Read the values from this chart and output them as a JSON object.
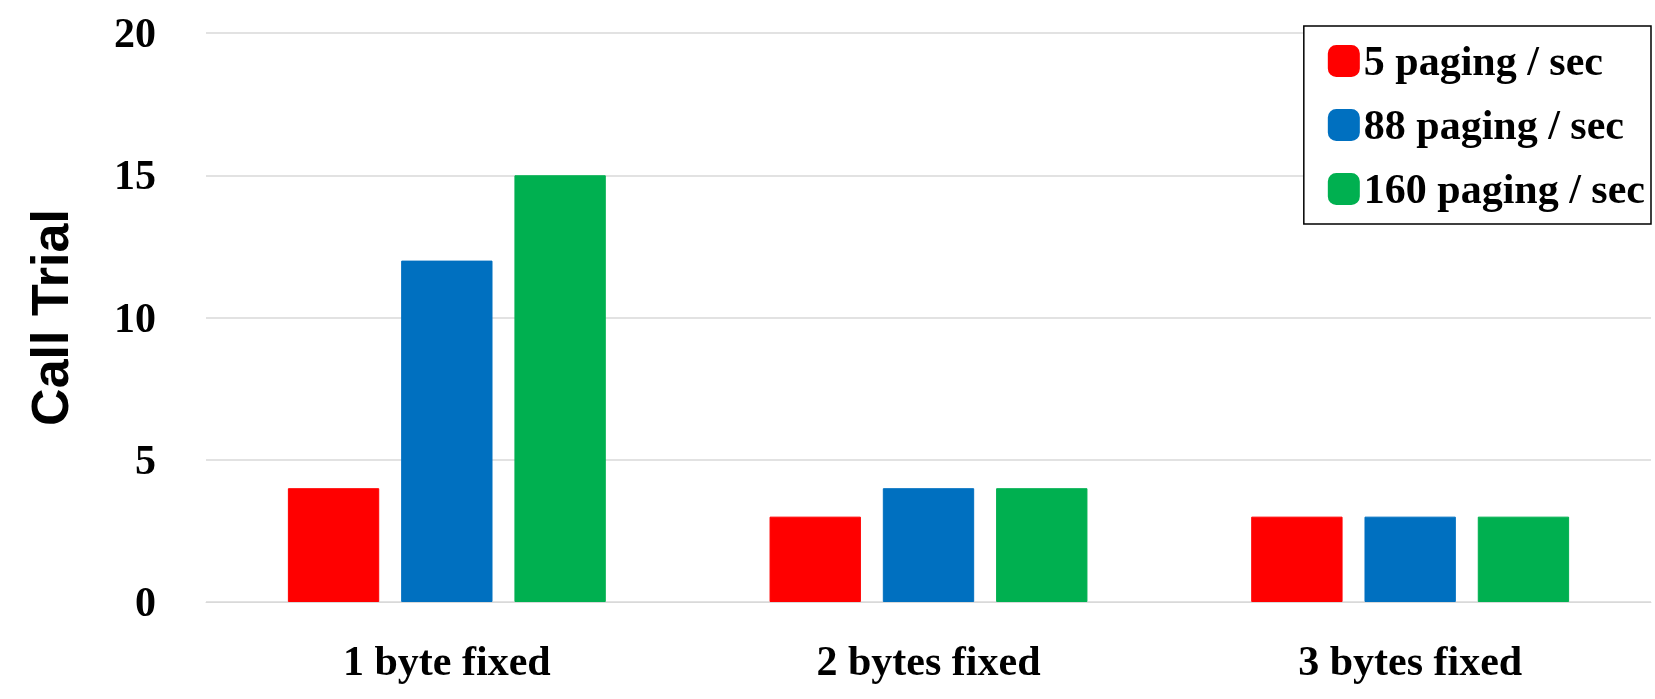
{
  "chart_data": {
    "type": "bar",
    "ylabel": "Call Trial",
    "categories": [
      "1 byte fixed",
      "2 bytes fixed",
      "3 bytes fixed"
    ],
    "series": [
      {
        "name": "5 paging / sec",
        "color": "#ff0000",
        "values": [
          4,
          3,
          3
        ]
      },
      {
        "name": "88 paging / sec",
        "color": "#0070c0",
        "values": [
          12,
          4,
          3
        ]
      },
      {
        "name": "160 paging / sec",
        "color": "#00b050",
        "values": [
          15,
          4,
          3
        ]
      }
    ],
    "ylim": [
      0,
      20
    ],
    "yticks": [
      0,
      5,
      10,
      15,
      20
    ],
    "grid": "y",
    "legend": "top right"
  }
}
